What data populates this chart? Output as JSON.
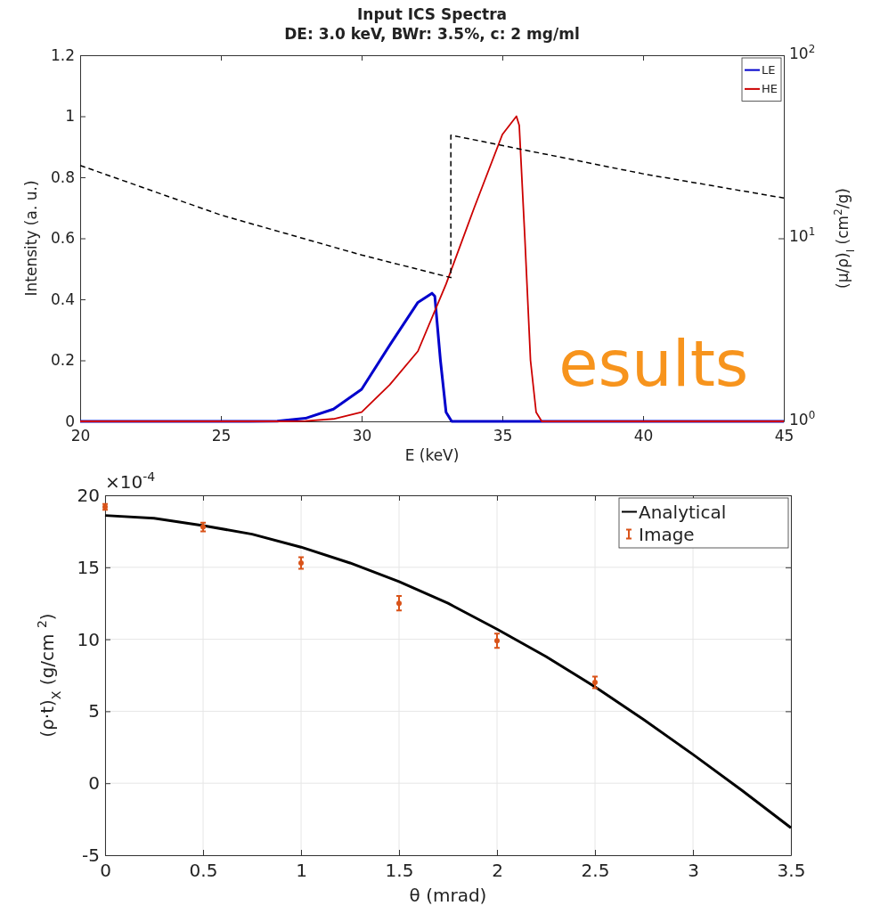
{
  "chart_data": [
    {
      "type": "line",
      "title": "Input ICS Spectra",
      "subtitle": "DE: 3.0 keV, BWr: 3.5%, c: 2 mg/ml",
      "xlabel": "E (keV)",
      "ylabel": "Intensity (a. u.)",
      "y2label": "(μ/ρ)$_{I}$ (cm$^{2}$/g)",
      "xlim": [
        20,
        45
      ],
      "xticks": [
        20,
        25,
        30,
        35,
        40,
        45
      ],
      "ylim": [
        0,
        1.2
      ],
      "yticks": [
        0,
        0.2,
        0.4,
        0.6,
        0.8,
        1,
        1.2
      ],
      "y2lim": [
        1,
        100
      ],
      "y2ticks": [
        {
          "value": 1,
          "label": "10$^{0}$"
        },
        {
          "value": 10,
          "label": "10$^{1}$"
        },
        {
          "value": 100,
          "label": "10$^{2}$"
        }
      ],
      "log": "y2",
      "grid": false,
      "legend": "top right",
      "series": [
        {
          "name": "LE",
          "color": "#0000cc",
          "x": [
            20,
            26,
            27,
            28,
            29,
            30,
            31,
            32,
            32.5,
            32.6,
            32.8,
            33,
            33.2,
            45
          ],
          "values": [
            0,
            0,
            0.001,
            0.01,
            0.04,
            0.105,
            0.25,
            0.39,
            0.42,
            0.41,
            0.2,
            0.03,
            0,
            0
          ]
        },
        {
          "name": "HE",
          "color": "#cc0000",
          "x": [
            20,
            27,
            28,
            29,
            30,
            31,
            32,
            33,
            34,
            35,
            35.5,
            35.6,
            35.8,
            36,
            36.2,
            36.4,
            45
          ],
          "values": [
            0,
            0,
            0.001,
            0.008,
            0.03,
            0.12,
            0.23,
            0.45,
            0.7,
            0.94,
            1,
            0.97,
            0.6,
            0.2,
            0.03,
            0,
            0
          ]
        },
        {
          "type": "line",
          "axis": "y2",
          "color": "#000000",
          "line_style": "dashed",
          "x": [
            20,
            25,
            30,
            33.17,
            33.17,
            40,
            45
          ],
          "values": [
            25,
            13.4,
            8.1,
            6.1,
            36.6,
            22.5,
            16.6
          ]
        }
      ],
      "annotations": [
        "esults"
      ]
    },
    {
      "type": "line",
      "xlabel": "θ (mrad)",
      "ylabel": "(ρ·t)$_{X}$ (g/cm $^{2}$)",
      "xlim": [
        0,
        3.5
      ],
      "xticks": [
        0,
        0.5,
        1,
        1.5,
        2,
        2.5,
        3,
        3.5
      ],
      "ylim": [
        -5,
        20
      ],
      "yticks": [
        -5,
        0,
        5,
        10,
        15,
        20
      ],
      "grid": true,
      "legend": "top right",
      "series": [
        {
          "name": "Analytical",
          "color": "#000000",
          "x": [
            0,
            0.25,
            0.5,
            0.75,
            1,
            1.25,
            1.5,
            1.75,
            2,
            2.25,
            2.5,
            2.75,
            3,
            3.25,
            3.5
          ],
          "values": [
            18.6,
            18.4,
            17.9,
            17.3,
            16.4,
            15.3,
            14.0,
            12.5,
            10.7,
            8.8,
            6.7,
            4.4,
            2.0,
            -0.5,
            -3.1
          ]
        },
        {
          "name": "Image",
          "type": "scatter",
          "color": "#d95319",
          "marker": "circle",
          "x": [
            0,
            0.5,
            1,
            1.5,
            2,
            2.5
          ],
          "values": [
            19.2,
            17.8,
            15.3,
            12.5,
            9.9,
            7.0
          ],
          "errors": [
            0.2,
            0.3,
            0.4,
            0.5,
            0.5,
            0.4
          ]
        }
      ],
      "annotations": [
        "×10$^{-4}$"
      ]
    }
  ]
}
